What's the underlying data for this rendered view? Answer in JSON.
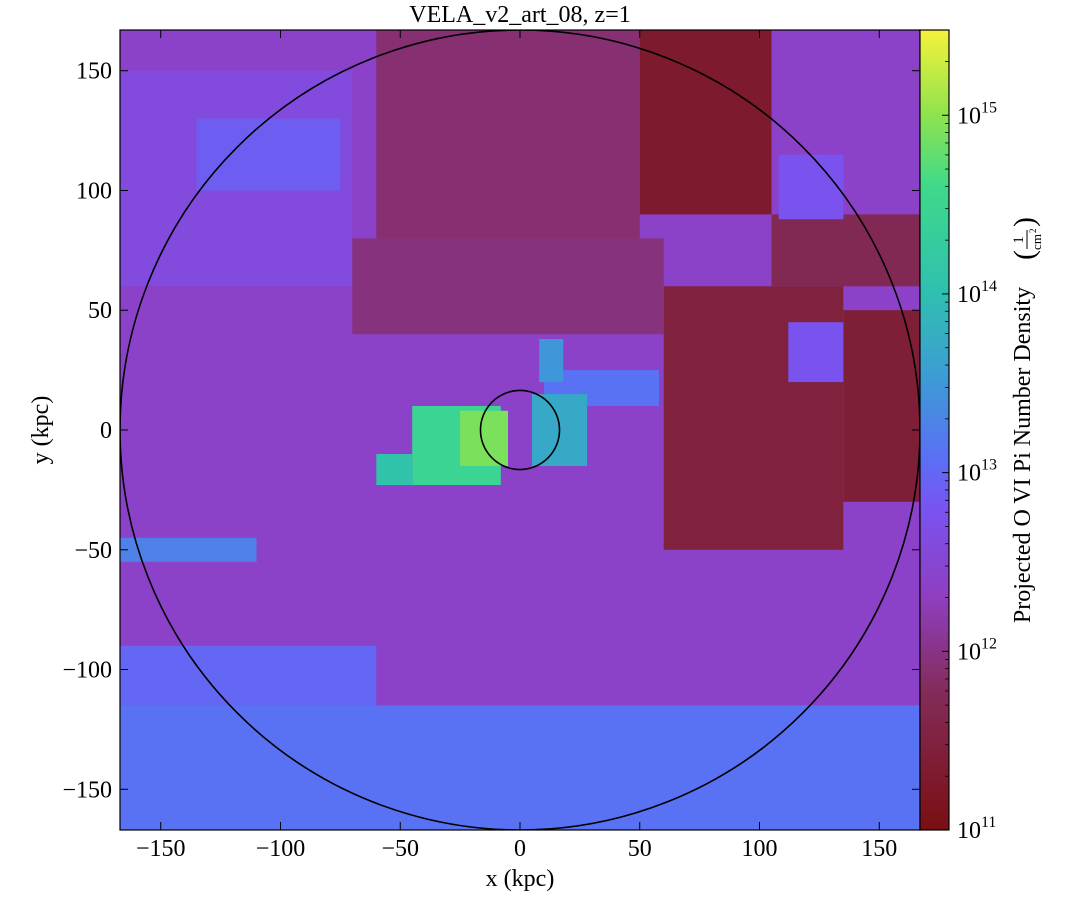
{
  "chart_data": {
    "type": "heatmap",
    "title": "VELA_v2_art_08, z=1",
    "xlabel": "x  (kpc)",
    "ylabel": "y  (kpc)",
    "colorbar_label": "Projected O VI Pi Number Density",
    "colorbar_units_num": "1",
    "colorbar_units_den": "cm",
    "colorbar_units_den_exp": "2",
    "xlim": [
      -167,
      167
    ],
    "ylim": [
      -167,
      167
    ],
    "xticks": [
      -150,
      -100,
      -50,
      0,
      50,
      100,
      150
    ],
    "yticks": [
      -150,
      -100,
      -50,
      0,
      50,
      100,
      150
    ],
    "xtick_labels": [
      "−150",
      "−100",
      "−50",
      "0",
      "50",
      "100",
      "150"
    ],
    "ytick_labels": [
      "−150",
      "−100",
      "−50",
      "0",
      "50",
      "100",
      "150"
    ],
    "color_scale": "log",
    "clim": [
      100000000000.0,
      3000000000000000.0
    ],
    "colorbar_ticks": [
      {
        "base": "10",
        "exp": "11",
        "value": 100000000000.0
      },
      {
        "base": "10",
        "exp": "12",
        "value": 1000000000000.0
      },
      {
        "base": "10",
        "exp": "13",
        "value": 10000000000000.0
      },
      {
        "base": "10",
        "exp": "14",
        "value": 100000000000000.0
      },
      {
        "base": "10",
        "exp": "15",
        "value": 1000000000000000.0
      }
    ],
    "colormap_stops": [
      {
        "value": 100000000000.0,
        "color": "#7a0f12"
      },
      {
        "value": 600000000000.0,
        "color": "#832c5a"
      },
      {
        "value": 2000000000000.0,
        "color": "#8f3ec0"
      },
      {
        "value": 6000000000000.0,
        "color": "#7a52ee"
      },
      {
        "value": 12000000000000.0,
        "color": "#5b6ff5"
      },
      {
        "value": 30000000000000.0,
        "color": "#3f97d9"
      },
      {
        "value": 100000000000000.0,
        "color": "#2fbfb0"
      },
      {
        "value": 400000000000000.0,
        "color": "#3fd98a"
      },
      {
        "value": 1000000000000000.0,
        "color": "#8ee34e"
      },
      {
        "value": 3000000000000000.0,
        "color": "#f4f23a"
      }
    ],
    "circles": [
      {
        "name": "outer-radius",
        "center": [
          0,
          0
        ],
        "radius": 167
      },
      {
        "name": "inner-radius",
        "center": [
          0,
          0
        ],
        "radius": 16.5
      }
    ],
    "regions": [
      {
        "name": "background",
        "x": [
          -167,
          167
        ],
        "y": [
          -167,
          167
        ],
        "value": 2500000000000.0
      },
      {
        "name": "top-center",
        "x": [
          -60,
          50
        ],
        "y": [
          60,
          167
        ],
        "value": 800000000000.0
      },
      {
        "name": "top-right",
        "x": [
          50,
          105
        ],
        "y": [
          90,
          167
        ],
        "value": 200000000000.0
      },
      {
        "name": "upper-right-strip",
        "x": [
          105,
          167
        ],
        "y": [
          60,
          90
        ],
        "value": 500000000000.0
      },
      {
        "name": "right-dark",
        "x": [
          60,
          135
        ],
        "y": [
          -50,
          60
        ],
        "value": 300000000000.0
      },
      {
        "name": "far-right-dark",
        "x": [
          135,
          167
        ],
        "y": [
          -30,
          50
        ],
        "value": 250000000000.0
      },
      {
        "name": "upper-left-band",
        "x": [
          -167,
          -70
        ],
        "y": [
          60,
          150
        ],
        "value": 4000000000000.0
      },
      {
        "name": "upper-left-blue",
        "x": [
          -135,
          -75
        ],
        "y": [
          100,
          130
        ],
        "value": 8000000000000.0
      },
      {
        "name": "upper-right-blue",
        "x": [
          108,
          135
        ],
        "y": [
          88,
          115
        ],
        "value": 6000000000000.0
      },
      {
        "name": "center-ridge",
        "x": [
          -70,
          60
        ],
        "y": [
          40,
          80
        ],
        "value": 900000000000.0
      },
      {
        "name": "left-blue-strip",
        "x": [
          -167,
          -110
        ],
        "y": [
          -55,
          -45
        ],
        "value": 18000000000000.0
      },
      {
        "name": "bottom-band",
        "x": [
          -167,
          167
        ],
        "y": [
          -167,
          -115
        ],
        "value": 13000000000000.0
      },
      {
        "name": "bottom-left",
        "x": [
          -167,
          -60
        ],
        "y": [
          -115,
          -90
        ],
        "value": 10000000000000.0
      },
      {
        "name": "cgm-filament-right",
        "x": [
          10,
          58
        ],
        "y": [
          10,
          25
        ],
        "value": 13000000000000.0
      },
      {
        "name": "cgm-spike",
        "x": [
          8,
          18
        ],
        "y": [
          20,
          38
        ],
        "value": 30000000000000.0
      },
      {
        "name": "cgm-core-right",
        "x": [
          5,
          28
        ],
        "y": [
          -15,
          15
        ],
        "value": 50000000000000.0
      },
      {
        "name": "cgm-core-left",
        "x": [
          -45,
          -8
        ],
        "y": [
          -23,
          10
        ],
        "value": 300000000000000.0
      },
      {
        "name": "cgm-left-ext",
        "x": [
          -60,
          -45
        ],
        "y": [
          -23,
          -10
        ],
        "value": 120000000000000.0
      },
      {
        "name": "galaxy-hotspot",
        "x": [
          -25,
          -5
        ],
        "y": [
          -15,
          8
        ],
        "value": 800000000000000.0
      },
      {
        "name": "right-blob",
        "x": [
          112,
          135
        ],
        "y": [
          20,
          45
        ],
        "value": 6000000000000.0
      }
    ]
  }
}
